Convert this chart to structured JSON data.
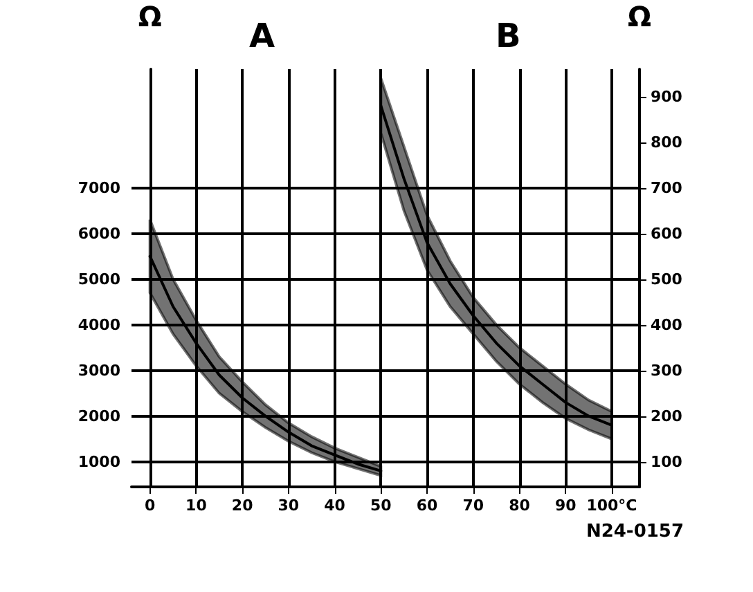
{
  "chart_data": {
    "type": "line",
    "ylabel": "Ω",
    "y2label": "Ω",
    "annotations": [
      "A",
      "B",
      "N24-0157"
    ],
    "xlim": [
      -4,
      106
    ],
    "xticks": [
      0,
      10,
      20,
      30,
      40,
      50,
      60,
      70,
      80,
      90,
      {
        "value": 100,
        "label": "100°C"
      }
    ],
    "ylim": [
      450,
      9600
    ],
    "yticks": [
      1000,
      2000,
      3000,
      4000,
      5000,
      6000,
      7000
    ],
    "y2lim": [
      45,
      960
    ],
    "y2ticks": [
      100,
      200,
      300,
      400,
      500,
      600,
      700,
      800,
      900
    ],
    "grid": true,
    "marker": "none",
    "line_style": "solid",
    "series": [
      {
        "color": "#000000",
        "x": [
          0,
          5,
          10,
          15,
          20,
          25,
          30,
          35,
          40,
          45,
          50
        ],
        "values": [
          5500,
          4400,
          3600,
          2900,
          2400,
          2000,
          1650,
          1350,
          1150,
          950,
          800
        ],
        "lower": [
          4700,
          3800,
          3100,
          2500,
          2100,
          1750,
          1450,
          1200,
          1000,
          850,
          700
        ],
        "upper": [
          6300,
          5000,
          4100,
          3300,
          2750,
          2250,
          1850,
          1550,
          1300,
          1100,
          900
        ]
      },
      {
        "color": "#000000",
        "axis": "y2",
        "x": [
          50,
          55,
          60,
          65,
          70,
          75,
          80,
          85,
          90,
          95,
          100
        ],
        "values": [
          880,
          720,
          580,
          490,
          420,
          360,
          310,
          270,
          230,
          200,
          180
        ],
        "lower": [
          820,
          650,
          520,
          440,
          380,
          320,
          270,
          230,
          195,
          170,
          150
        ],
        "upper": [
          940,
          790,
          640,
          540,
          460,
          400,
          350,
          310,
          270,
          235,
          210
        ]
      }
    ]
  }
}
